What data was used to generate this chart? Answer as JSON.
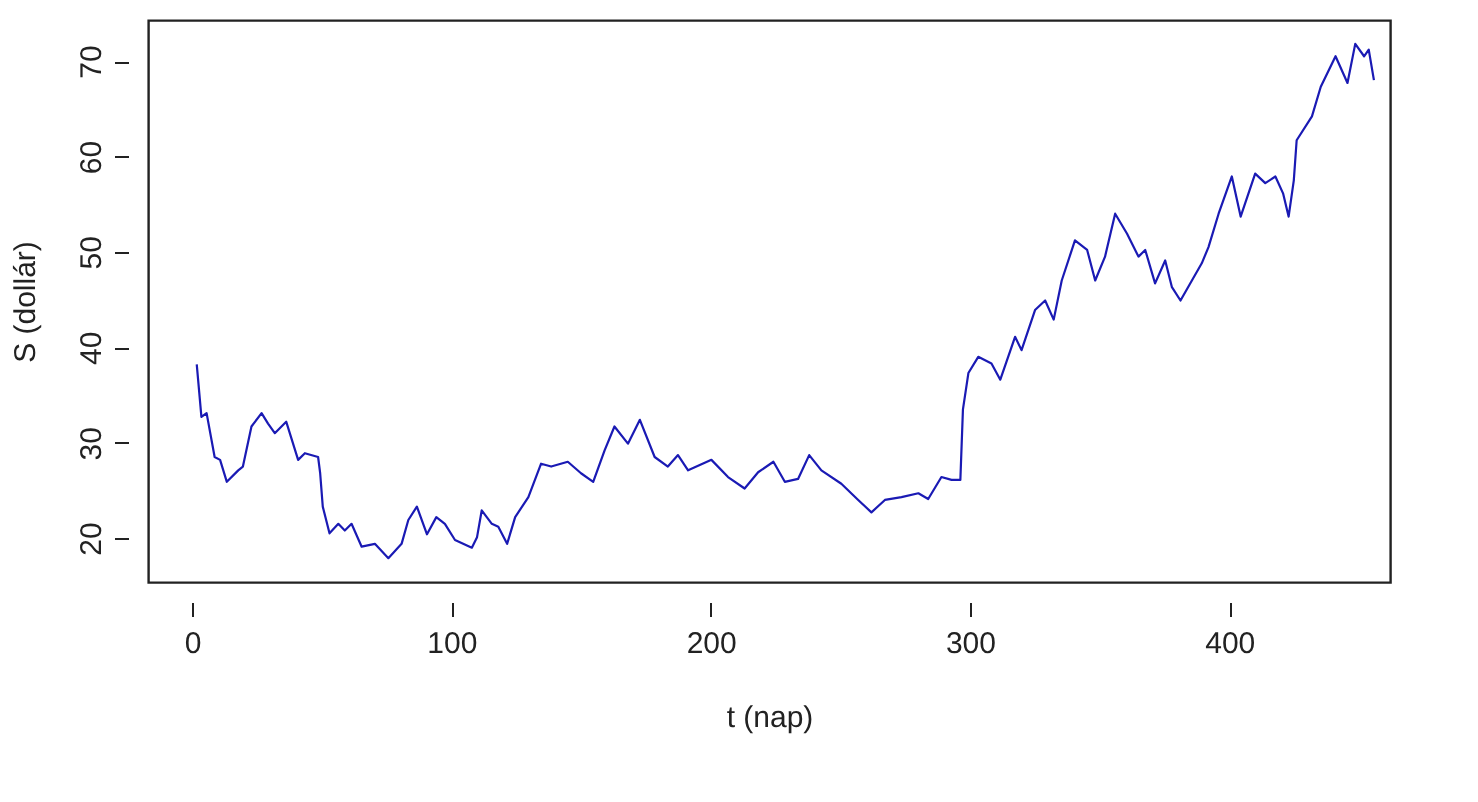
{
  "chart_data": {
    "type": "line",
    "xlabel": "t (nap)",
    "ylabel": "S (dollár)",
    "xlim": [
      -17,
      462
    ],
    "ylim": [
      15.4,
      74.3
    ],
    "xticks": [
      0,
      100,
      200,
      300,
      400
    ],
    "yticks": [
      20,
      30,
      40,
      50,
      60,
      70
    ],
    "grid": false,
    "line_style": "solid",
    "marker": "none",
    "series": [
      {
        "color": "#1a1ab4",
        "x": [
          1.8,
          3.6,
          5.6,
          8.7,
          10.8,
          13.4,
          17.8,
          19.6,
          22.9,
          26.8,
          29.3,
          31.9,
          36.3,
          40.9,
          43.5,
          48.6,
          49.4,
          50.4,
          53,
          56.4,
          58.9,
          61.5,
          65.4,
          70.5,
          75.7,
          80.8,
          83.4,
          86.7,
          90.6,
          94.2,
          97.5,
          101.4,
          107.9,
          109.9,
          111.7,
          115.6,
          118.1,
          121.5,
          124.6,
          129.7,
          134.6,
          138.5,
          144.9,
          150,
          154.7,
          159.1,
          162.9,
          168.1,
          172.7,
          178.4,
          183.5,
          187.4,
          191.3,
          200.3,
          206.7,
          213.1,
          218.3,
          224.2,
          228.6,
          233.7,
          238,
          242.7,
          250.4,
          256.9,
          262,
          267.2,
          273.6,
          280.1,
          283.9,
          289,
          292.9,
          296.3,
          297.3,
          299.4,
          303.2,
          308.3,
          311.7,
          317.4,
          319.9,
          325.1,
          329,
          332.3,
          335.4,
          340.5,
          345.2,
          348.3,
          352.1,
          356,
          360.6,
          365,
          367.6,
          371.4,
          375.3,
          377.9,
          381.2,
          385.6,
          389.4,
          392,
          395.9,
          401,
          404.4,
          410,
          413.9,
          417.8,
          420.8,
          422.9,
          424.9,
          426,
          431.9,
          435.3,
          441,
          445.6,
          448.6,
          452,
          453.8,
          455.8
        ],
        "values": [
          38.2,
          32.7,
          33.1,
          28.5,
          28.2,
          25.9,
          27.1,
          27.5,
          31.7,
          33.1,
          32,
          31,
          32.2,
          28.2,
          28.9,
          28.5,
          26.8,
          23.3,
          20.5,
          21.5,
          20.8,
          21.5,
          19.1,
          19.4,
          17.9,
          19.4,
          21.9,
          23.3,
          20.4,
          22.2,
          21.5,
          19.8,
          19,
          20.1,
          22.9,
          21.5,
          21.2,
          19.4,
          22.2,
          24.3,
          27.8,
          27.5,
          28,
          26.8,
          25.9,
          29.2,
          31.7,
          29.9,
          32.4,
          28.5,
          27.5,
          28.7,
          27.1,
          28.2,
          26.4,
          25.2,
          26.9,
          28,
          25.9,
          26.2,
          28.7,
          27.1,
          25.7,
          24,
          22.7,
          24,
          24.3,
          24.7,
          24.1,
          26.4,
          26.1,
          26.1,
          33.5,
          37.3,
          39,
          38.3,
          36.6,
          41.1,
          39.7,
          43.9,
          44.9,
          42.9,
          47,
          51.2,
          50.2,
          47,
          49.5,
          54,
          51.9,
          49.5,
          50.2,
          46.7,
          49.1,
          46.3,
          44.9,
          47,
          48.8,
          50.5,
          54,
          57.9,
          53.7,
          58.2,
          57.2,
          57.9,
          56.1,
          53.7,
          57.5,
          61.7,
          64.2,
          67.3,
          70.5,
          67.7,
          71.8,
          70.5,
          71.2,
          68
        ]
      }
    ]
  }
}
